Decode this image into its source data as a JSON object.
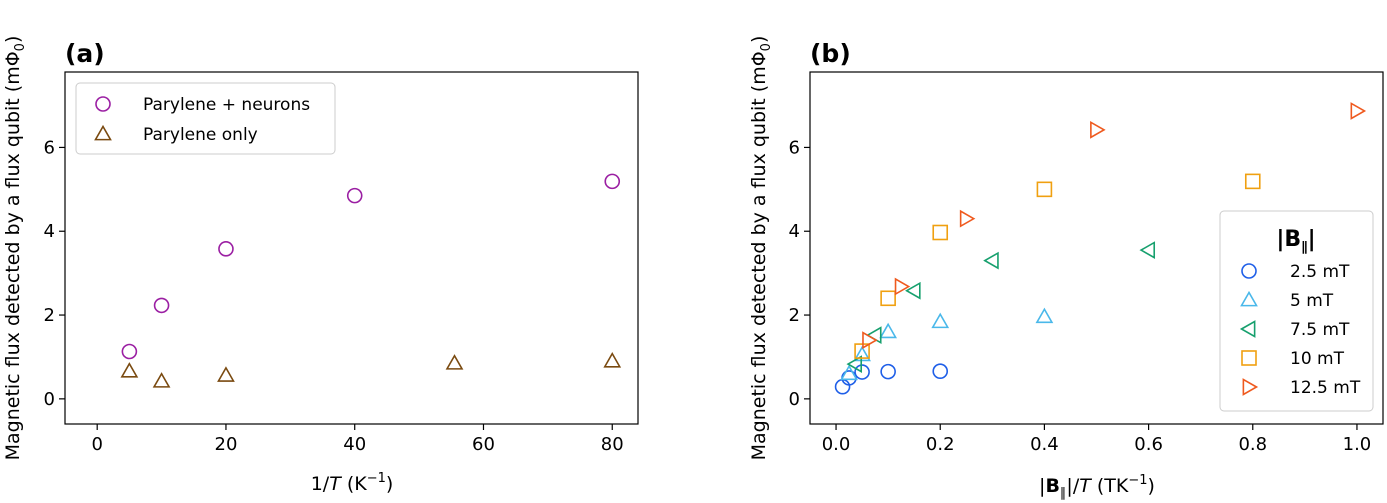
{
  "chart_data": [
    {
      "type": "scatter",
      "panel": "(a)",
      "xlabel_pre": "1/",
      "xlabel_var": "T",
      "xlabel_post": " (K",
      "xlabel_exp": "−1",
      "xlabel_close": ")",
      "ylabel": "Magnetic flux detected by a flux qubit (mΦ",
      "ylabel_sub": "0",
      "ylabel_close": ")",
      "xlim": [
        -5,
        84
      ],
      "ylim": [
        -0.6,
        7.8
      ],
      "xticks": [
        0,
        20,
        40,
        60,
        80
      ],
      "yticks": [
        0,
        2,
        4,
        6
      ],
      "legend_loc": "upper left",
      "series": [
        {
          "name": "Parylene + neurons",
          "marker": "circle",
          "color": "#9b1fa3",
          "x": [
            5,
            10,
            20,
            40,
            80
          ],
          "y": [
            1.13,
            2.23,
            3.58,
            4.85,
            5.19
          ]
        },
        {
          "name": "Parylene only",
          "marker": "triangle-up",
          "color": "#7a4a10",
          "x": [
            5,
            10,
            20,
            55.5,
            80
          ],
          "y": [
            0.66,
            0.42,
            0.56,
            0.85,
            0.9
          ]
        }
      ]
    },
    {
      "type": "scatter",
      "panel": "(b)",
      "xlabel_pre": "|",
      "xlabel_bold": "B",
      "xlabel_sub": "∥",
      "xlabel_mid": "|/",
      "xlabel_var": "T",
      "xlabel_post": " (TK",
      "xlabel_exp": "−1",
      "xlabel_close": ")",
      "ylabel": "Magnetic flux detected by a flux qubit (mΦ",
      "ylabel_sub": "0",
      "ylabel_close": ")",
      "xlim": [
        -0.05,
        1.05
      ],
      "ylim": [
        -0.6,
        7.8
      ],
      "xticks": [
        0.0,
        0.2,
        0.4,
        0.6,
        0.8,
        1.0
      ],
      "xtick_labels": [
        "0.0",
        "0.2",
        "0.4",
        "0.6",
        "0.8",
        "1.0"
      ],
      "yticks": [
        0,
        2,
        4,
        6
      ],
      "legend_loc": "center right",
      "legend_title_pre": "|",
      "legend_title_bold": "B",
      "legend_title_sub": "∥",
      "legend_title_post": "|",
      "series": [
        {
          "name": "2.5 mT",
          "marker": "circle",
          "color": "#1f5fe8",
          "x": [
            0.0125,
            0.025,
            0.05,
            0.1,
            0.2
          ],
          "y": [
            0.29,
            0.5,
            0.64,
            0.65,
            0.66
          ]
        },
        {
          "name": "5 mT",
          "marker": "triangle-up",
          "color": "#4ab8ea",
          "x": [
            0.025,
            0.05,
            0.1,
            0.2,
            0.4
          ],
          "y": [
            0.6,
            1.05,
            1.6,
            1.84,
            1.96
          ]
        },
        {
          "name": "7.5 mT",
          "marker": "triangle-left",
          "color": "#17a06e",
          "x": [
            0.0375,
            0.075,
            0.15,
            0.3,
            0.6
          ],
          "y": [
            0.83,
            1.52,
            2.58,
            3.3,
            3.55
          ]
        },
        {
          "name": "10 mT",
          "marker": "square",
          "color": "#f0a010",
          "x": [
            0.05,
            0.1,
            0.2,
            0.4,
            0.8
          ],
          "y": [
            1.14,
            2.4,
            3.97,
            5.0,
            5.19
          ]
        },
        {
          "name": "12.5 mT",
          "marker": "triangle-right",
          "color": "#ef5a1f",
          "x": [
            0.0625,
            0.125,
            0.25,
            0.5,
            1.0
          ],
          "y": [
            1.4,
            2.68,
            4.3,
            6.42,
            6.87
          ]
        }
      ]
    }
  ]
}
